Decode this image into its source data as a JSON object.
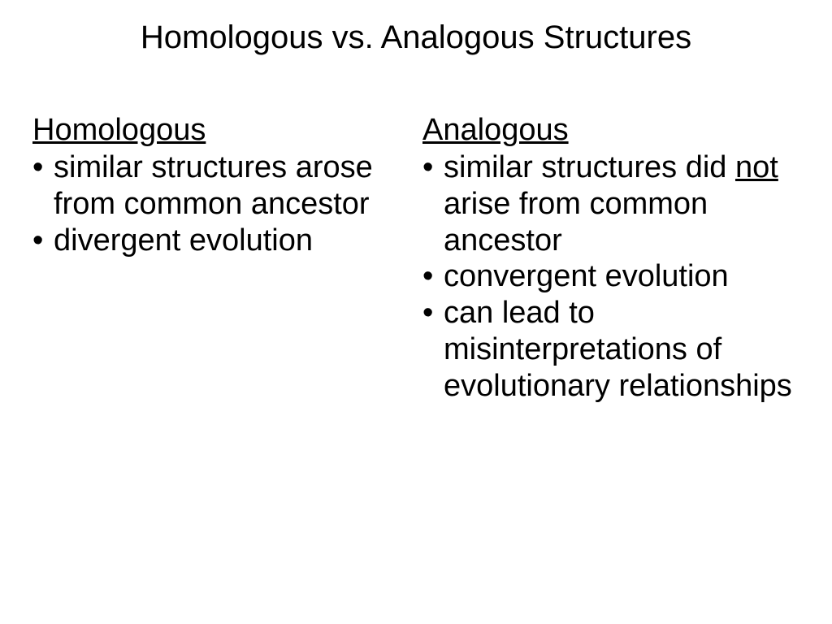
{
  "title": "Homologous vs.  Analogous Structures",
  "left": {
    "heading": "Homologous",
    "items": [
      {
        "pre": "similar structures arose from common ancestor"
      },
      {
        "pre": "divergent evolution"
      }
    ]
  },
  "right": {
    "heading": "Analogous",
    "items": [
      {
        "pre": "similar structures did ",
        "u": "not",
        "post": " arise from common ancestor"
      },
      {
        "pre": "convergent evolution"
      },
      {
        "pre": "can lead to misinterpretations of evolutionary relationships"
      }
    ]
  },
  "style": {
    "background": "#ffffff",
    "text_color": "#000000",
    "font_family": "Arial",
    "title_fontsize": 40,
    "heading_fontsize": 38,
    "body_fontsize": 38
  }
}
